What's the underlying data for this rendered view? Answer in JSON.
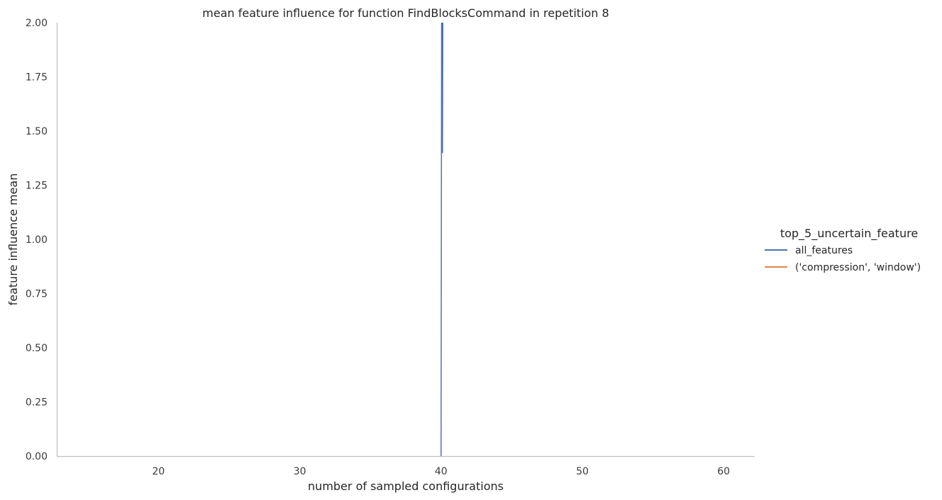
{
  "chart_data": {
    "type": "line",
    "title": "mean feature influence for function FindBlocksCommand in repetition 8",
    "xlabel": "number of sampled configurations",
    "ylabel": "feature influence mean",
    "xlim": [
      12.8,
      62.2
    ],
    "ylim": [
      0,
      2
    ],
    "xticks": [
      20,
      30,
      40,
      50,
      60
    ],
    "yticks": [
      0.0,
      0.25,
      0.5,
      0.75,
      1.0,
      1.25,
      1.5,
      1.75,
      2.0
    ],
    "ytick_labels": [
      "0.00",
      "0.25",
      "0.50",
      "0.75",
      "1.00",
      "1.25",
      "1.50",
      "1.75",
      "2.00"
    ],
    "grid": false,
    "legend": {
      "title": "top_5_uncertain_feature",
      "position": "center-right",
      "entries": [
        "all_features",
        "('compression', 'window')"
      ]
    },
    "series": [
      {
        "name": "all_features",
        "color": "#4c72b0",
        "x": [
          40.0,
          40.05,
          40.1,
          40.15
        ],
        "y": [
          0.0,
          2.6,
          1.4,
          2.6
        ],
        "band": {
          "x": [
            40.0,
            40.1
          ],
          "lower": [
            1.7,
            1.7
          ],
          "upper": [
            2.0,
            2.0
          ]
        }
      },
      {
        "name": "('compression', 'window')",
        "color": "#dd8452",
        "x": [],
        "y": []
      }
    ]
  }
}
